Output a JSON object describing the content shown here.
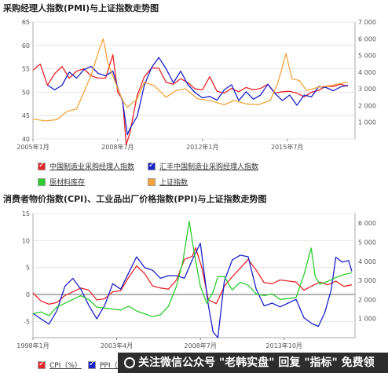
{
  "panel1": {
    "title": "采购经理人指数(PMI)与上证指数走势图",
    "legend": [
      {
        "label": "中国制造业采购经理人指数",
        "color": "#e8262a"
      },
      {
        "label": "汇丰中国制造业采购经理人指数",
        "color": "#1a22c8"
      },
      {
        "label": "原材料库存",
        "color": "#2ccc2c"
      },
      {
        "label": "上证指数",
        "color": "#f2a43a"
      }
    ]
  },
  "panel2": {
    "title": "消费者物价指数(CPI)、工业品出厂价格指数(PPI)与上证指数走势图",
    "legend": [
      {
        "label": "CPI（%）",
        "color": "#e8262a"
      },
      {
        "label": "PPI（%）",
        "color": "#1a22c8"
      }
    ]
  },
  "banner": {
    "text": "关注微信公众号 \"老韩实盘\" 回复 \"指标\" 免费领"
  },
  "chart_data": [
    {
      "type": "line",
      "title": "采购经理人指数(PMI)与上证指数走势图",
      "x_ticks": [
        "2005年1月",
        "2008年7月",
        "2012年1月",
        "2015年7月"
      ],
      "x_range": [
        2005.0,
        2018.3
      ],
      "y_left": {
        "ticks": [
          "40",
          "45",
          "50",
          "55",
          "60",
          "65"
        ],
        "ylim": [
          40,
          65
        ]
      },
      "y_right": {
        "ticks": [
          "1 000",
          "2 000",
          "3 000",
          "4 000",
          "5 000",
          "6 000",
          "7 000"
        ],
        "ylim": [
          0,
          7000
        ]
      },
      "series": [
        {
          "name": "中国制造业采购经理人指数",
          "axis": "left",
          "color": "#e8262a",
          "x": [
            2005.0,
            2005.3,
            2005.6,
            2005.9,
            2006.2,
            2006.5,
            2006.8,
            2007.1,
            2007.4,
            2007.7,
            2008.0,
            2008.3,
            2008.5,
            2008.7,
            2008.85,
            2009.0,
            2009.3,
            2009.6,
            2009.9,
            2010.2,
            2010.5,
            2010.8,
            2011.1,
            2011.4,
            2011.7,
            2012.0,
            2012.3,
            2012.6,
            2012.9,
            2013.2,
            2013.5,
            2013.8,
            2014.1,
            2014.4,
            2014.7,
            2015.0,
            2015.3,
            2015.6,
            2015.9,
            2016.2,
            2016.5,
            2016.8,
            2017.1,
            2017.4,
            2017.7,
            2018.0
          ],
          "y": [
            54.7,
            56.0,
            51.5,
            54.0,
            55.5,
            53.0,
            54.5,
            55.0,
            53.5,
            53.0,
            53.0,
            58.0,
            50.0,
            48.4,
            38.8,
            41.2,
            49.3,
            53.3,
            55.2,
            55.1,
            52.1,
            51.7,
            52.9,
            52.0,
            50.7,
            50.5,
            53.3,
            50.2,
            49.8,
            50.8,
            50.1,
            51.0,
            50.5,
            50.8,
            51.7,
            49.8,
            50.1,
            50.2,
            49.8,
            49.0,
            50.0,
            50.4,
            51.3,
            51.2,
            51.7,
            51.3
          ]
        },
        {
          "name": "汇丰中国制造业采购经理人指数",
          "axis": "left",
          "color": "#1a22c8",
          "x": [
            2005.6,
            2005.9,
            2006.2,
            2006.5,
            2006.8,
            2007.1,
            2007.4,
            2007.7,
            2008.0,
            2008.3,
            2008.5,
            2008.7,
            2008.9,
            2009.0,
            2009.3,
            2009.6,
            2009.9,
            2010.2,
            2010.5,
            2010.8,
            2011.1,
            2011.4,
            2011.7,
            2012.0,
            2012.3,
            2012.6,
            2012.9,
            2013.2,
            2013.5,
            2013.8,
            2014.1,
            2014.4,
            2014.7,
            2015.0,
            2015.3,
            2015.6,
            2015.9,
            2016.2,
            2016.5,
            2016.8,
            2017.1,
            2017.4,
            2017.7,
            2018.0
          ],
          "y": [
            51.5,
            50.5,
            51.5,
            54.3,
            53.0,
            54.8,
            55.5,
            54.0,
            53.5,
            54.5,
            51.0,
            48.0,
            40.9,
            42.2,
            44.8,
            51.5,
            55.3,
            57.4,
            55.0,
            52.0,
            54.5,
            51.6,
            49.9,
            48.8,
            49.1,
            48.3,
            50.5,
            51.6,
            48.2,
            50.1,
            48.5,
            49.4,
            51.7,
            49.7,
            48.2,
            49.4,
            47.2,
            49.4,
            49.0,
            51.2,
            51.0,
            50.3,
            51.1,
            51.5
          ]
        },
        {
          "name": "上证指数",
          "axis": "right",
          "color": "#f2a43a",
          "x": [
            2005.0,
            2005.5,
            2006.0,
            2006.4,
            2006.8,
            2007.1,
            2007.4,
            2007.7,
            2007.9,
            2008.1,
            2008.4,
            2008.7,
            2008.9,
            2009.3,
            2009.6,
            2010.0,
            2010.5,
            2010.9,
            2011.3,
            2011.8,
            2012.3,
            2012.9,
            2013.3,
            2013.8,
            2014.3,
            2014.8,
            2015.1,
            2015.45,
            2015.7,
            2016.0,
            2016.3,
            2016.8,
            2017.3,
            2017.8,
            2018.0
          ],
          "y": [
            1200,
            1080,
            1160,
            1650,
            1800,
            2800,
            3800,
            5200,
            6000,
            4500,
            3400,
            2300,
            1900,
            2400,
            3400,
            3200,
            2500,
            2900,
            3000,
            2400,
            2300,
            2050,
            2300,
            2100,
            2050,
            2300,
            3300,
            5100,
            3600,
            3500,
            2900,
            3100,
            3200,
            3350,
            3400
          ]
        }
      ]
    },
    {
      "type": "line",
      "title": "消费者物价指数(CPI)、工业品出厂价格指数(PPI)与上证指数走势图",
      "x_ticks": [
        "1998年1月",
        "2003年4月",
        "2008年7月",
        "2013年10月"
      ],
      "x_range": [
        1998.0,
        2018.2
      ],
      "y_left": {
        "ticks": [
          "-5",
          "0",
          "5",
          "10",
          "15"
        ],
        "ylim": [
          -8,
          15
        ]
      },
      "y_right": {
        "ticks": [
          "1 000",
          "2 000",
          "3 000",
          "4 000",
          "5 000",
          "6 000"
        ],
        "ylim": [
          0,
          6500
        ]
      },
      "series": [
        {
          "name": "CPI（%）",
          "axis": "left",
          "color": "#e8262a",
          "x": [
            1998.0,
            1998.5,
            1999.0,
            1999.5,
            2000.0,
            2000.5,
            2001.0,
            2001.5,
            2002.0,
            2002.5,
            2003.0,
            2003.5,
            2004.0,
            2004.5,
            2005.0,
            2005.5,
            2006.0,
            2006.5,
            2007.0,
            2007.5,
            2008.0,
            2008.2,
            2008.6,
            2009.0,
            2009.5,
            2010.0,
            2010.5,
            2011.0,
            2011.5,
            2012.0,
            2012.5,
            2013.0,
            2013.5,
            2014.0,
            2014.5,
            2015.0,
            2015.5,
            2016.0,
            2016.5,
            2017.0,
            2017.5,
            2018.0
          ],
          "y": [
            0.3,
            -1.2,
            -1.8,
            -1.5,
            -0.2,
            0.5,
            1.2,
            0.8,
            -1.0,
            -0.8,
            0.5,
            0.7,
            3.2,
            5.3,
            3.9,
            1.6,
            1.2,
            1.0,
            2.7,
            6.5,
            7.1,
            8.7,
            4.9,
            -1.0,
            -1.7,
            1.5,
            3.3,
            4.9,
            6.5,
            4.5,
            2.2,
            2.0,
            2.7,
            2.5,
            2.3,
            0.8,
            1.6,
            2.3,
            1.8,
            2.5,
            1.5,
            1.8
          ]
        },
        {
          "name": "PPI（%）",
          "axis": "left",
          "color": "#1a22c8",
          "x": [
            1998.0,
            1998.5,
            1999.0,
            1999.5,
            2000.0,
            2000.5,
            2001.0,
            2001.5,
            2002.0,
            2002.5,
            2003.0,
            2003.5,
            2004.0,
            2004.5,
            2005.0,
            2005.5,
            2006.0,
            2006.5,
            2007.0,
            2007.5,
            2008.0,
            2008.5,
            2009.0,
            2009.3,
            2009.6,
            2010.0,
            2010.5,
            2011.0,
            2011.5,
            2012.0,
            2012.5,
            2013.0,
            2013.5,
            2014.0,
            2014.5,
            2015.0,
            2015.5,
            2015.9,
            2016.3,
            2016.7,
            2017.0,
            2017.4,
            2017.8,
            2018.0
          ],
          "y": [
            -3.5,
            -4.5,
            -5.5,
            -3.0,
            1.5,
            3.0,
            1.0,
            -2.0,
            -4.5,
            -2.0,
            2.0,
            1.0,
            4.0,
            7.0,
            5.0,
            4.5,
            3.0,
            3.5,
            3.5,
            3.0,
            6.5,
            9.5,
            -2.0,
            -7.0,
            -8.0,
            2.5,
            6.4,
            7.3,
            7.0,
            1.0,
            -2.1,
            -1.6,
            -2.3,
            -1.6,
            -0.9,
            -4.3,
            -5.4,
            -5.9,
            -3.4,
            0.8,
            6.9,
            6.0,
            6.3,
            4.3
          ]
        },
        {
          "name": "上证指数",
          "axis": "right",
          "color": "#2ccc2c",
          "x": [
            1998.0,
            1998.5,
            1999.0,
            1999.5,
            2000.0,
            2000.5,
            2001.0,
            2001.5,
            2002.0,
            2002.5,
            2003.0,
            2003.5,
            2004.0,
            2004.5,
            2005.0,
            2005.5,
            2006.0,
            2006.5,
            2007.0,
            2007.4,
            2007.8,
            2008.1,
            2008.5,
            2008.9,
            2009.3,
            2009.6,
            2010.0,
            2010.5,
            2011.0,
            2011.5,
            2012.0,
            2012.5,
            2013.0,
            2013.5,
            2014.0,
            2014.5,
            2015.0,
            2015.45,
            2015.7,
            2016.0,
            2016.5,
            2017.0,
            2017.5,
            2018.0
          ],
          "y": [
            1250,
            1350,
            1150,
            1600,
            1800,
            2000,
            2200,
            2000,
            1600,
            1550,
            1500,
            1450,
            1650,
            1400,
            1250,
            1100,
            1200,
            1650,
            2700,
            4000,
            6100,
            4500,
            2700,
            1800,
            2400,
            3200,
            3200,
            2500,
            2900,
            2750,
            2300,
            2200,
            2300,
            2000,
            2050,
            2100,
            3300,
            4700,
            3200,
            2800,
            2950,
            3150,
            3300,
            3400
          ]
        }
      ]
    }
  ]
}
